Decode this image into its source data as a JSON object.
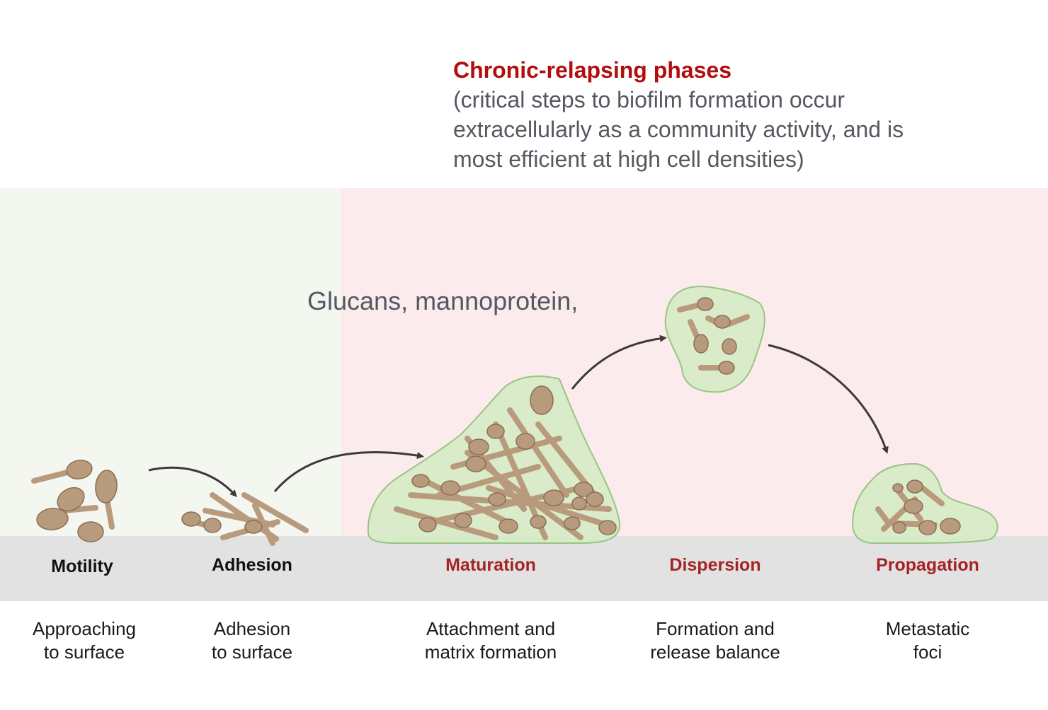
{
  "header": {
    "title": "Chronic-relapsing phases",
    "subtitle": "(critical steps to biofilm formation occur\nextracellularly as a community activity, and is\nmost efficient at high cell densities)"
  },
  "matrix_label": "Glucans, mannoprotein,",
  "colors": {
    "acute_zone": "#f4f6f0",
    "chronic_zone": "#fcebec",
    "surface_band": "#e2e2e2",
    "cell_fill": "#b89a7c",
    "cell_stroke": "#8a6e55",
    "biofilm_matrix": "#d6ecc6",
    "title_red": "#b30d0d",
    "stage_red": "#a62424",
    "arrow": "#3a3a3a"
  },
  "stages": [
    {
      "id": "motility",
      "label": "Motility",
      "color": "#111111",
      "description": "Approaching\nto surface"
    },
    {
      "id": "adhesion",
      "label": "Adhesion",
      "color": "#111111",
      "description": "Adhesion\nto surface"
    },
    {
      "id": "maturation",
      "label": "Maturation",
      "color": "#a62424",
      "description": "Attachment and\nmatrix formation"
    },
    {
      "id": "dispersion",
      "label": "Dispersion",
      "color": "#a62424",
      "description": "Formation and\nrelease balance"
    },
    {
      "id": "propagation",
      "label": "Propagation",
      "color": "#a62424",
      "description": "Metastatic\nfoci"
    }
  ]
}
